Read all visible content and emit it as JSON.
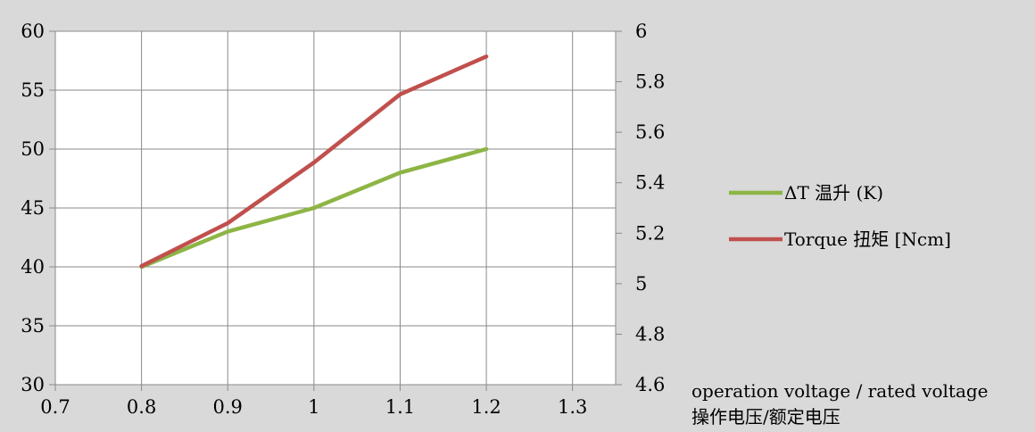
{
  "chart_data": {
    "type": "line",
    "title": "",
    "xlabel": "operation voltage / rated voltage",
    "xlabel_cn": "操作电压/额定电压",
    "xlim": [
      0.7,
      1.35
    ],
    "x_ticks": [
      "0.7",
      "0.8",
      "0.9",
      "1",
      "1.1",
      "1.2",
      "1.3"
    ],
    "ylim_left": [
      30,
      60
    ],
    "y_left_ticks": [
      "30",
      "35",
      "40",
      "45",
      "50",
      "55",
      "60"
    ],
    "ylim_right": [
      4.6,
      6
    ],
    "y_right_ticks": [
      "4.6",
      "4.8",
      "5",
      "5.2",
      "5.4",
      "5.6",
      "5.8",
      "6"
    ],
    "grid": true,
    "legend_position": "right",
    "series": [
      {
        "name": "ΔT 温升 (K)",
        "axis": "left",
        "color": "#8db545",
        "x": [
          0.8,
          0.9,
          1.0,
          1.1,
          1.2
        ],
        "y": [
          40,
          43,
          45,
          48,
          50
        ]
      },
      {
        "name": "Torque 扭矩 [Ncm]",
        "axis": "right",
        "color": "#c0504d",
        "x": [
          0.8,
          0.9,
          1.0,
          1.1,
          1.2
        ],
        "y": [
          5.07,
          5.24,
          5.48,
          5.75,
          5.9
        ]
      }
    ]
  }
}
